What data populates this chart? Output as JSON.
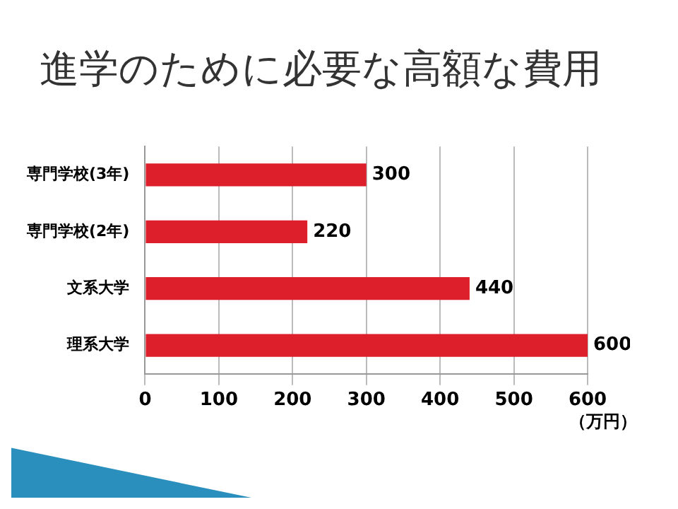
{
  "chart_data": {
    "type": "bar",
    "title": "進学のために必要な高額な費用",
    "orientation": "horizontal",
    "categories": [
      "専門学校(3年)",
      "専門学校(2年)",
      "文系大学",
      "理系大学"
    ],
    "values": [
      300,
      220,
      440,
      600
    ],
    "color": "#dc1f2b",
    "xlim": [
      0,
      600
    ],
    "xticks": [
      0,
      100,
      200,
      300,
      400,
      500,
      600
    ],
    "xlabel": "（万円）",
    "grid": "x",
    "legend": false,
    "data_labels": true
  }
}
